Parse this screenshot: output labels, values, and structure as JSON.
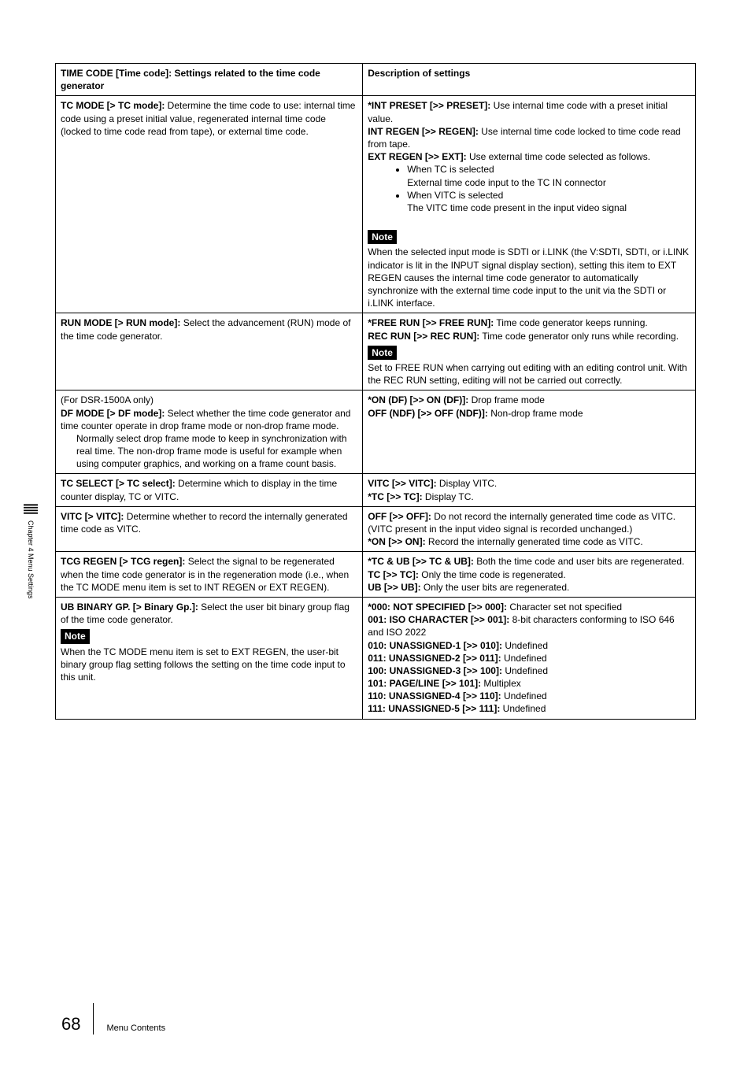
{
  "sideTab": "Chapter 4   Menu Settings",
  "header": {
    "left": "TIME CODE [Time code]: Settings related to the time code generator",
    "right": "Description of settings"
  },
  "rows": {
    "tcmode": {
      "title": "TC MODE [> TC mode]:",
      "desc": "Determine the time code to use: internal time code using a preset initial value, regenerated internal time code (locked to time code read from tape), or external time code.",
      "r_intpreset": "*INT PRESET [>> PRESET]:",
      "r_intpreset_d": "Use internal time code with a preset initial value.",
      "r_intregen": "INT REGEN [>> REGEN]:",
      "r_intregen_d": "Use internal time code locked to time code read from tape.",
      "r_extregen": "EXT REGEN [>> EXT]:",
      "r_extregen_d": "Use external time code selected as follows.",
      "r_bul1": "When TC is selected",
      "r_bul1b": "External time code input to the TC IN connector",
      "r_bul2": "When VITC is selected",
      "r_bul2b": "The VITC time code present in the input video signal",
      "noteLabel": "Note",
      "noteText": "When the selected input mode is SDTI or i.LINK (the V:SDTI, SDTI, or i.LINK indicator is lit in the INPUT signal display section), setting this item to EXT REGEN causes the internal time code generator to automatically synchronize with the external time code input to the unit via the SDTI or i.LINK interface."
    },
    "runmode": {
      "title": "RUN MODE [> RUN mode]:",
      "desc": "Select the advancement (RUN) mode of the time code generator.",
      "r_free": "*FREE RUN [>> FREE RUN]:",
      "r_free_d": "Time code generator keeps running.",
      "r_rec": "REC RUN [>> REC RUN]:",
      "r_rec_d": "Time code generator only runs while recording.",
      "noteLabel": "Note",
      "noteText": "Set to FREE RUN when carrying out editing with an editing control unit. With the REC RUN setting, editing will not be carried out correctly."
    },
    "dfmode": {
      "pre": "(For DSR-1500A only)",
      "title": "DF MODE [> DF mode]:",
      "desc": "Select whether the time code generator and time counter operate in drop frame mode or non-drop frame mode.",
      "desc2": "Normally select drop frame mode to keep in synchronization with real time. The non-drop frame mode is useful for example when using computer graphics, and working on a frame count basis.",
      "r_on": "*ON (DF) [>> ON (DF)]:",
      "r_on_d": "Drop frame mode",
      "r_off": "OFF (NDF) [>> OFF (NDF)]:",
      "r_off_d": "Non-drop frame mode"
    },
    "tcselect": {
      "title": "TC SELECT [> TC select]:",
      "desc": "Determine which to display in the time counter display, TC or VITC.",
      "r_vitc": "VITC [>> VITC]:",
      "r_vitc_d": "Display VITC.",
      "r_tc": "*TC [>> TC]:",
      "r_tc_d": "Display TC."
    },
    "vitc": {
      "title": "VITC [> VITC]:",
      "desc": "Determine whether to record the internally generated time code as VITC.",
      "r_off": "OFF [>> OFF]:",
      "r_off_d": "Do not record the internally generated time code as VITC. (VITC present in the input video signal is recorded unchanged.)",
      "r_on": "*ON [>> ON]:",
      "r_on_d": "Record the internally generated time code as VITC."
    },
    "tcgregen": {
      "title": "TCG REGEN [> TCG regen]:",
      "desc": "Select the signal to be regenerated when the time code generator is in the regeneration mode (i.e., when the TC MODE menu item is set to INT REGEN or EXT REGEN).",
      "r_both": "*TC & UB [>> TC & UB]:",
      "r_both_d": "Both the time code and user bits are regenerated.",
      "r_tc": "TC [>> TC]:",
      "r_tc_d": "Only the time code is regenerated.",
      "r_ub": "UB [>> UB]:",
      "r_ub_d": "Only the user bits are regenerated."
    },
    "ubbinary": {
      "title": "UB BINARY GP. [> Binary Gp.]:",
      "desc": "Select the user bit binary group flag of the time code generator.",
      "noteLabel": "Note",
      "noteText": "When the TC MODE menu item is set to EXT REGEN, the user-bit binary group flag setting follows the setting on the time code input to this unit.",
      "r000": "*000: NOT SPECIFIED [>> 000]:",
      "r000_d": "Character set not specified",
      "r001": "001: ISO CHARACTER [>> 001]:",
      "r001_d": "8-bit characters conforming to ISO 646 and ISO 2022",
      "r010": "010: UNASSIGNED-1 [>> 010]:",
      "r010_d": "Undefined",
      "r011": "011: UNASSIGNED-2 [>> 011]:",
      "r011_d": "Undefined",
      "r100": "100: UNASSIGNED-3 [>> 100]:",
      "r100_d": "Undefined",
      "r101": "101: PAGE/LINE [>> 101]:",
      "r101_d": "Multiplex",
      "r110": "110: UNASSIGNED-4 [>> 110]:",
      "r110_d": "Undefined",
      "r111": "111: UNASSIGNED-5 [>> 111]:",
      "r111_d": "Undefined"
    }
  },
  "footer": {
    "pageNum": "68",
    "label": "Menu Contents"
  }
}
